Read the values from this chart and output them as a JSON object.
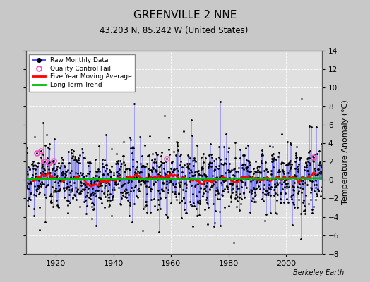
{
  "title": "GREENVILLE 2 NNE",
  "subtitle": "43.203 N, 85.242 W (United States)",
  "ylabel_right": "Temperature Anomaly (°C)",
  "attribution": "Berkeley Earth",
  "xlim": [
    1909.5,
    2012.5
  ],
  "ylim": [
    -8,
    14
  ],
  "yticks": [
    -8,
    -6,
    -4,
    -2,
    0,
    2,
    4,
    6,
    8,
    10,
    12,
    14
  ],
  "xticks": [
    1920,
    1940,
    1960,
    1980,
    2000
  ],
  "bg_color": "#c8c8c8",
  "plot_bg_color": "#e0e0e0",
  "grid_color": "#ffffff",
  "raw_line_color": "#5555ff",
  "dot_color": "#000000",
  "ma_color": "#ff0000",
  "trend_color": "#00bb00",
  "qc_color": "#ff44cc",
  "start_year": 1909,
  "end_year": 2012,
  "seed": 17
}
